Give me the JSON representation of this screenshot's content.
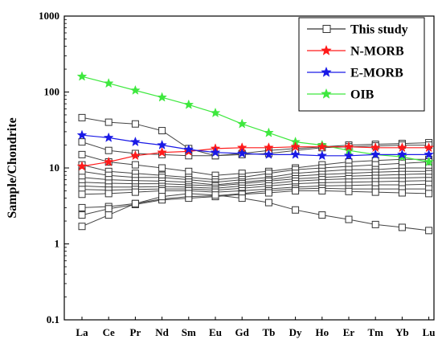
{
  "chart_data": {
    "type": "line",
    "yscale": "log",
    "ylim": [
      0.1,
      1000
    ],
    "ylabel": "Sample/Chondrite",
    "xlabel": "",
    "categories": [
      "La",
      "Ce",
      "Pr",
      "Nd",
      "Sm",
      "Eu",
      "Gd",
      "Tb",
      "Dy",
      "Ho",
      "Er",
      "Tm",
      "Yb",
      "Lu"
    ],
    "y_ticks": [
      {
        "value": 0.1,
        "label": "0.1"
      },
      {
        "value": 1,
        "label": "1"
      },
      {
        "value": 10,
        "label": "10"
      },
      {
        "value": 100,
        "label": "100"
      },
      {
        "value": 1000,
        "label": "1000"
      }
    ],
    "legend_position": "top-right",
    "legend": [
      {
        "label": "This study",
        "marker": "open-square",
        "color": "#333333"
      },
      {
        "label": "N-MORB",
        "marker": "star",
        "color": "#ff1a1a"
      },
      {
        "label": "E-MORB",
        "marker": "star",
        "color": "#1a1ae6"
      },
      {
        "label": "OIB",
        "marker": "star",
        "color": "#3ee83e"
      }
    ],
    "samples": [
      [
        46,
        40,
        38,
        31,
        18,
        14.5,
        15.5,
        17,
        18,
        19,
        20,
        20.5,
        21,
        21.5
      ],
      [
        22,
        17,
        15.5,
        15,
        14.5,
        14.5,
        15,
        15.5,
        17,
        18.5,
        19,
        19.5,
        20,
        20
      ],
      [
        15,
        12,
        11,
        10,
        9,
        8,
        8.5,
        9,
        10,
        11,
        12,
        12.5,
        13,
        13
      ],
      [
        11,
        9,
        8.5,
        8,
        7.5,
        7,
        7.5,
        8.5,
        9.5,
        10,
        10.5,
        11,
        11.5,
        12
      ],
      [
        9,
        8,
        7.5,
        7.5,
        7,
        6.5,
        7,
        7.5,
        8.5,
        9,
        9.5,
        9.5,
        10,
        10
      ],
      [
        7.5,
        7,
        6.8,
        6.7,
        6.5,
        6,
        6.5,
        7,
        7.8,
        8.2,
        8.5,
        8.8,
        9,
        9
      ],
      [
        6.5,
        6.3,
        6.2,
        6.2,
        6,
        5.8,
        6.2,
        6.7,
        7.2,
        7.5,
        7.8,
        8,
        8.2,
        8.4
      ],
      [
        5.8,
        5.6,
        5.6,
        5.7,
        5.6,
        5.4,
        5.8,
        6.2,
        6.7,
        7,
        7.2,
        7.3,
        7.4,
        7.5
      ],
      [
        5.2,
        5.1,
        5.2,
        5.3,
        5.3,
        5.1,
        5.4,
        5.8,
        6.2,
        6.4,
        6.5,
        6.6,
        6.7,
        6.8
      ],
      [
        4.5,
        4.6,
        4.8,
        5,
        5,
        4.8,
        5,
        5.3,
        5.6,
        5.8,
        5.9,
        6,
        6,
        6.1
      ],
      [
        3,
        3.1,
        3.4,
        3.9,
        4.2,
        4.3,
        4.6,
        5,
        5.3,
        5.4,
        5.3,
        5.3,
        5.3,
        5.3
      ],
      [
        2.4,
        2.9,
        3.3,
        3.8,
        4,
        4.2,
        4.5,
        4.7,
        5,
        5,
        4.9,
        4.8,
        4.7,
        4.6
      ],
      [
        1.7,
        2.4,
        3.4,
        4.2,
        4.6,
        4.4,
        4,
        3.5,
        2.8,
        2.4,
        2.1,
        1.8,
        1.65,
        1.5
      ]
    ],
    "series": [
      {
        "name": "OIB",
        "color": "#3ee83e",
        "values": [
          160,
          130,
          105,
          85,
          68,
          53,
          38,
          29,
          22,
          20,
          17,
          15,
          14,
          12
        ]
      },
      {
        "name": "N-MORB",
        "color": "#ff1a1a",
        "values": [
          10.5,
          12,
          14.5,
          16,
          16.5,
          18,
          18.5,
          18.5,
          19,
          19,
          19,
          18.5,
          18.5,
          18.5
        ]
      },
      {
        "name": "E-MORB",
        "color": "#1a1ae6",
        "values": [
          27,
          25,
          22,
          20,
          17.5,
          16,
          15.5,
          15,
          15,
          14.5,
          14.5,
          15,
          15,
          15
        ]
      }
    ]
  }
}
